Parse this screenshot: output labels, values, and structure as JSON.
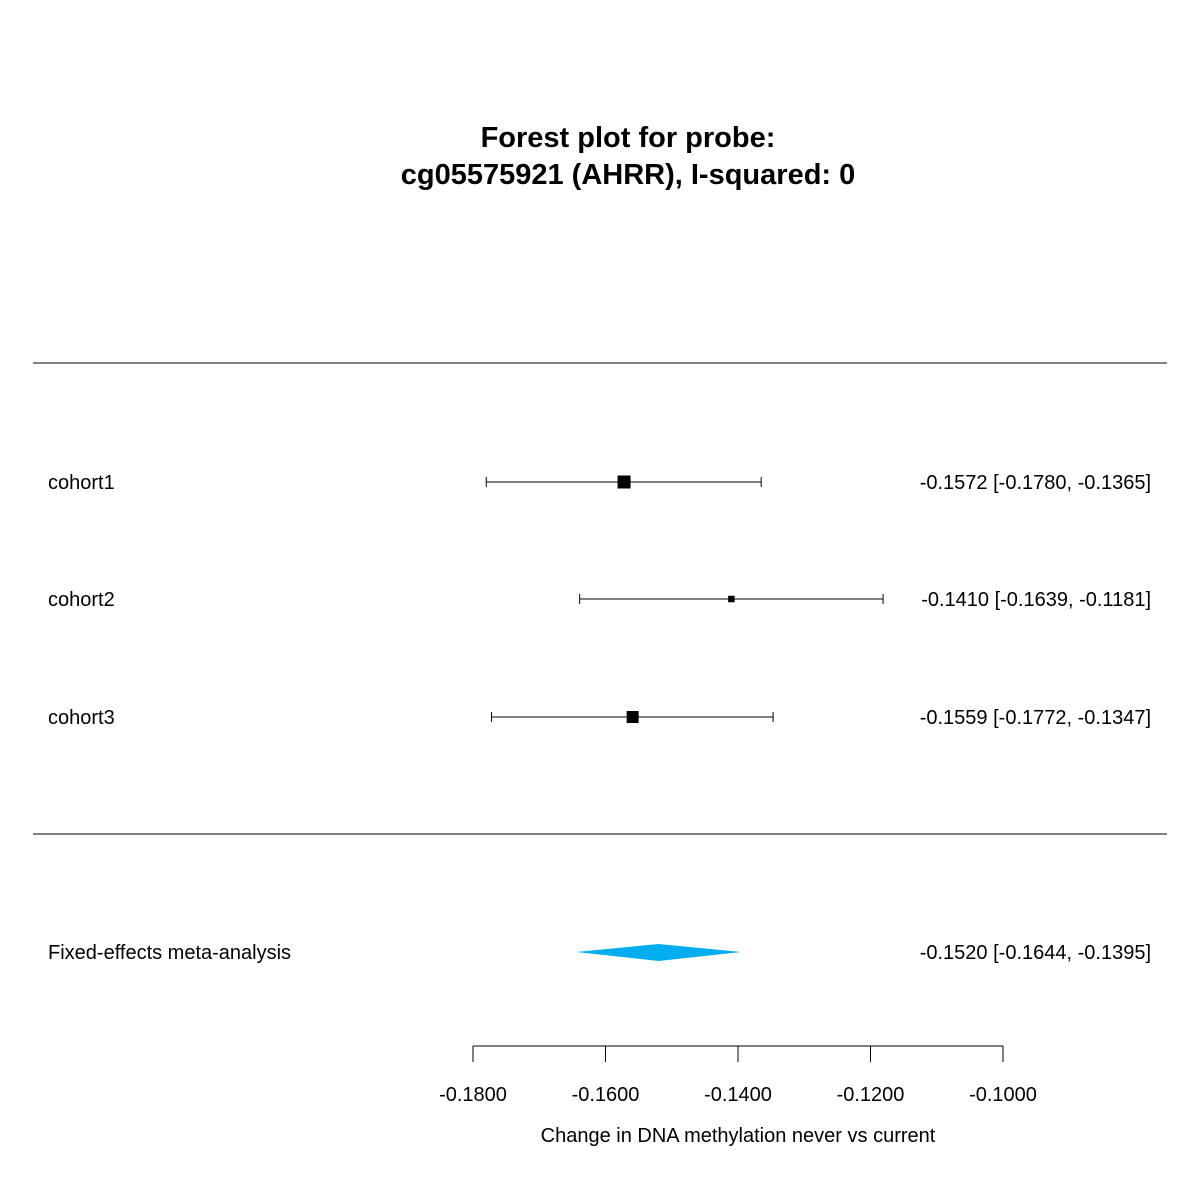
{
  "chart_data": {
    "type": "forest",
    "title_line1": "Forest plot for probe:",
    "title_line2": "cg05575921 (AHRR), I-squared: 0",
    "xlabel": "Change in DNA methylation never vs current",
    "xlim": [
      -0.18,
      -0.1
    ],
    "x_ticks": [
      -0.18,
      -0.16,
      -0.14,
      -0.12,
      -0.1
    ],
    "x_tick_labels": [
      "-0.1800",
      "-0.1600",
      "-0.1400",
      "-0.1200",
      "-0.1000"
    ],
    "studies": [
      {
        "name": "cohort1",
        "estimate": -0.1572,
        "lower": -0.178,
        "upper": -0.1365,
        "ci_text": "-0.1572 [-0.1780, -0.1365]",
        "weight": 1.0
      },
      {
        "name": "cohort2",
        "estimate": -0.141,
        "lower": -0.1639,
        "upper": -0.1181,
        "ci_text": "-0.1410 [-0.1639, -0.1181]",
        "weight": 0.25
      },
      {
        "name": "cohort3",
        "estimate": -0.1559,
        "lower": -0.1772,
        "upper": -0.1347,
        "ci_text": "-0.1559 [-0.1772, -0.1347]",
        "weight": 0.85
      }
    ],
    "summary": {
      "name": "Fixed-effects meta-analysis",
      "estimate": -0.152,
      "lower": -0.1644,
      "upper": -0.1395,
      "ci_text": "-0.1520 [-0.1644, -0.1395]"
    },
    "colors": {
      "summary": "#00AEEF",
      "marks": "#000000"
    }
  }
}
